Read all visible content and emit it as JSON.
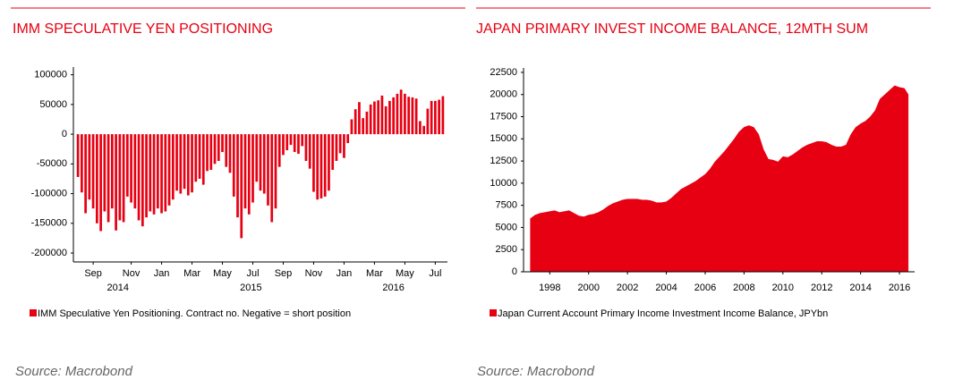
{
  "chart_data": [
    {
      "type": "bar",
      "title": "IMM SPECULATIVE YEN POSITIONING",
      "categories": [
        null,
        null,
        null,
        null,
        "Sep",
        null,
        null,
        null,
        null,
        null,
        null,
        null,
        null,
        null,
        "Nov",
        null,
        null,
        null,
        null,
        null,
        null,
        null,
        "Jan",
        null,
        null,
        null,
        null,
        null,
        null,
        null,
        "Mar",
        null,
        null,
        null,
        null,
        null,
        null,
        null,
        "May",
        null,
        null,
        null,
        null,
        null,
        null,
        null,
        "Jul",
        null,
        null,
        null,
        null,
        null,
        null,
        null,
        "Sep",
        null,
        null,
        null,
        null,
        null,
        null,
        null,
        "Nov",
        null,
        null,
        null,
        null,
        null,
        null,
        null,
        "Jan",
        null,
        null,
        null,
        null,
        null,
        null,
        null,
        "Mar",
        null,
        null,
        null,
        null,
        null,
        null,
        null,
        "May",
        null,
        null,
        null,
        null,
        null,
        null,
        null,
        "Jul",
        null,
        null
      ],
      "values": [
        -72000,
        -98000,
        -133000,
        -110000,
        -125000,
        -150000,
        -163000,
        -130000,
        -148000,
        -125000,
        -162000,
        -145000,
        -148000,
        -105000,
        -115000,
        -125000,
        -145000,
        -155000,
        -140000,
        -130000,
        -135000,
        -125000,
        -133000,
        -130000,
        -120000,
        -110000,
        -95000,
        -100000,
        -92000,
        -103000,
        -98000,
        -80000,
        -75000,
        -85000,
        -62000,
        -60000,
        -50000,
        -45000,
        -30000,
        -55000,
        -65000,
        -105000,
        -140000,
        -175000,
        -125000,
        -135000,
        -115000,
        -80000,
        -95000,
        -100000,
        -120000,
        -148000,
        -125000,
        -55000,
        -35000,
        -27000,
        -18000,
        -30000,
        -33000,
        -20000,
        -45000,
        -58000,
        -97000,
        -110000,
        -108000,
        -105000,
        -95000,
        -60000,
        -45000,
        -32000,
        -40000,
        -15000,
        25000,
        42000,
        54000,
        27000,
        38000,
        50000,
        55000,
        57000,
        65000,
        47000,
        56000,
        62000,
        68000,
        75000,
        68000,
        63000,
        62000,
        60000,
        22000,
        14000,
        43000,
        56000,
        56000,
        58000,
        64000
      ],
      "year_groups": [
        {
          "label": "2014",
          "first": 0,
          "last": 21
        },
        {
          "label": "2015",
          "first": 22,
          "last": 69
        },
        {
          "label": "2016",
          "first": 70,
          "last": 96
        }
      ],
      "series_name": "IMM Speculative Yen Positioning. Contract no. Negative = short position",
      "color": "#e60012",
      "ylim": [
        -215000,
        113000
      ],
      "yticks": [
        100000,
        50000,
        0,
        -50000,
        -100000,
        -150000,
        -200000
      ],
      "source": "Source: Macrobond"
    },
    {
      "type": "area",
      "title": "JAPAN PRIMARY INVEST INCOME BALANCE, 12MTH SUM",
      "x": [
        1997,
        1997.25,
        1997.5,
        1997.75,
        1998,
        1998.25,
        1998.5,
        1998.75,
        1999,
        1999.25,
        1999.5,
        1999.75,
        2000,
        2000.25,
        2000.5,
        2000.75,
        2001,
        2001.25,
        2001.5,
        2001.75,
        2002,
        2002.25,
        2002.5,
        2002.75,
        2003,
        2003.25,
        2003.5,
        2003.75,
        2004,
        2004.25,
        2004.5,
        2004.75,
        2005,
        2005.25,
        2005.5,
        2005.75,
        2006,
        2006.25,
        2006.5,
        2006.75,
        2007,
        2007.25,
        2007.5,
        2007.75,
        2008,
        2008.25,
        2008.5,
        2008.75,
        2009,
        2009.25,
        2009.5,
        2009.75,
        2010,
        2010.25,
        2010.5,
        2010.75,
        2011,
        2011.25,
        2011.5,
        2011.75,
        2012,
        2012.25,
        2012.5,
        2012.75,
        2013,
        2013.25,
        2013.5,
        2013.75,
        2014,
        2014.25,
        2014.5,
        2014.75,
        2015,
        2015.25,
        2015.5,
        2015.75,
        2016,
        2016.25,
        2016.45
      ],
      "values": [
        6000,
        6400,
        6600,
        6700,
        6800,
        6900,
        6700,
        6800,
        6900,
        6600,
        6300,
        6200,
        6400,
        6500,
        6700,
        7000,
        7400,
        7700,
        7900,
        8100,
        8200,
        8200,
        8200,
        8100,
        8100,
        8000,
        7800,
        7800,
        7900,
        8300,
        8800,
        9300,
        9600,
        9900,
        10200,
        10600,
        11000,
        11600,
        12400,
        13000,
        13600,
        14300,
        15000,
        15800,
        16300,
        16500,
        16300,
        15500,
        13800,
        12700,
        12600,
        12400,
        13000,
        12900,
        13200,
        13600,
        14000,
        14300,
        14500,
        14700,
        14700,
        14600,
        14300,
        14100,
        14100,
        14300,
        15500,
        16300,
        16700,
        17000,
        17500,
        18200,
        19500,
        20000,
        20500,
        21000,
        20800,
        20700,
        20000
      ],
      "series_name": "Japan Current Account Primary Income Investment Income Balance, JPYbn",
      "color": "#e60012",
      "xlim": [
        1996.65,
        2016.78
      ],
      "xticks": [
        1998,
        2000,
        2002,
        2004,
        2006,
        2008,
        2010,
        2012,
        2014,
        2016
      ],
      "ylim": [
        0,
        23000
      ],
      "yticks": [
        0,
        2500,
        5000,
        7500,
        10000,
        12500,
        15000,
        17500,
        20000,
        22500
      ],
      "source": "Source: Macrobond"
    }
  ]
}
